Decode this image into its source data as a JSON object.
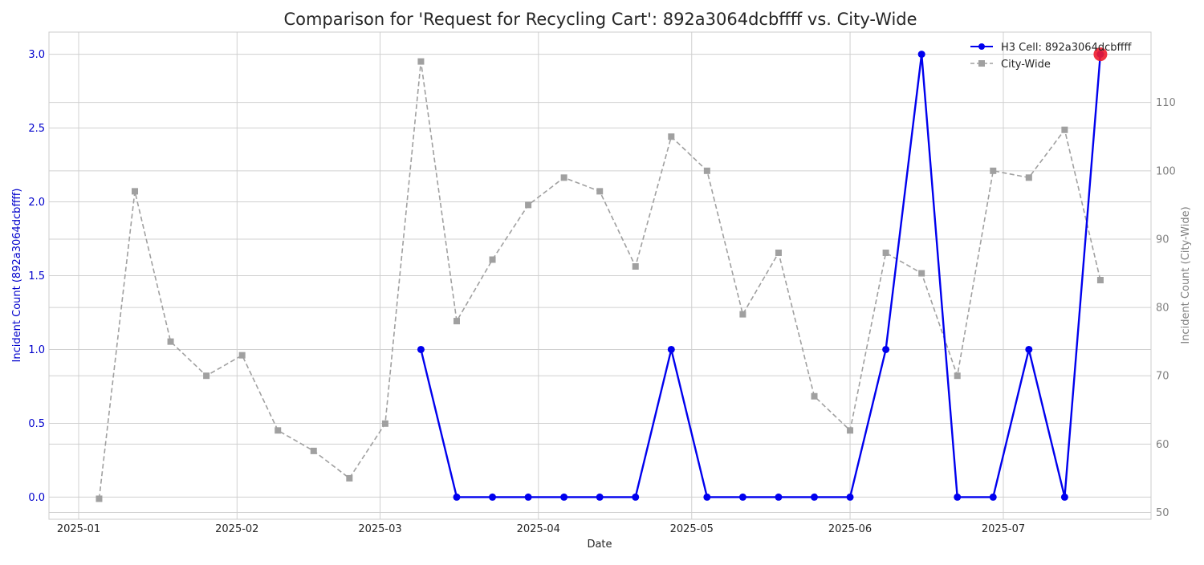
{
  "chart_data": {
    "type": "line",
    "title": "Comparison for 'Request for Recycling Cart': 892a3064dcbffff vs. City-Wide",
    "xlabel": "Date",
    "ylabel_left": "Incident Count (892a3064dcbffff)",
    "ylabel_right": "Incident Count (City-Wide)",
    "x_ticks": [
      "2025-01",
      "2025-02",
      "2025-03",
      "2025-04",
      "2025-05",
      "2025-06",
      "2025-07"
    ],
    "y_left_ticks": [
      "0.0",
      "0.5",
      "1.0",
      "1.5",
      "2.0",
      "2.5",
      "3.0"
    ],
    "y_right_ticks": [
      "50",
      "60",
      "70",
      "80",
      "90",
      "100",
      "110"
    ],
    "ylim_left": [
      -0.15,
      3.15
    ],
    "ylim_right": [
      49,
      120.3
    ],
    "grid": true,
    "legend_position": "top-right",
    "colors": {
      "cell": "#0000ee",
      "city": "#a0a0a0",
      "highlight": "#ee1c2e",
      "left_axis_text": "#0000cc",
      "right_axis_text": "#808080"
    },
    "series": [
      {
        "name": "H3 Cell: 892a3064dcbffff",
        "axis": "left",
        "style": "solid-circle",
        "x": [
          "2025-03-09",
          "2025-03-16",
          "2025-03-23",
          "2025-03-30",
          "2025-04-06",
          "2025-04-13",
          "2025-04-20",
          "2025-04-27",
          "2025-05-04",
          "2025-05-11",
          "2025-05-18",
          "2025-05-25",
          "2025-06-01",
          "2025-06-08",
          "2025-06-15",
          "2025-06-22",
          "2025-06-29",
          "2025-07-06",
          "2025-07-13",
          "2025-07-20"
        ],
        "values": [
          1,
          0,
          0,
          0,
          0,
          0,
          0,
          1,
          0,
          0,
          0,
          0,
          0,
          1,
          3,
          0,
          0,
          1,
          0,
          3
        ]
      },
      {
        "name": "City-Wide",
        "axis": "right",
        "style": "dashed-square",
        "x": [
          "2025-01-05",
          "2025-01-12",
          "2025-01-19",
          "2025-01-26",
          "2025-02-02",
          "2025-02-09",
          "2025-02-16",
          "2025-02-23",
          "2025-03-02",
          "2025-03-09",
          "2025-03-16",
          "2025-03-23",
          "2025-03-30",
          "2025-04-06",
          "2025-04-13",
          "2025-04-20",
          "2025-04-27",
          "2025-05-04",
          "2025-05-11",
          "2025-05-18",
          "2025-05-25",
          "2025-06-01",
          "2025-06-08",
          "2025-06-15",
          "2025-06-22",
          "2025-06-29",
          "2025-07-06",
          "2025-07-13",
          "2025-07-20"
        ],
        "values": [
          52,
          97,
          75,
          70,
          73,
          62,
          59,
          55,
          63,
          116,
          78,
          87,
          95,
          99,
          97,
          86,
          105,
          100,
          79,
          88,
          67,
          62,
          88,
          85,
          70,
          100,
          99,
          106,
          84
        ]
      }
    ],
    "highlight_point": {
      "series": "H3 Cell: 892a3064dcbffff",
      "x": "2025-07-20",
      "value": 3
    }
  }
}
